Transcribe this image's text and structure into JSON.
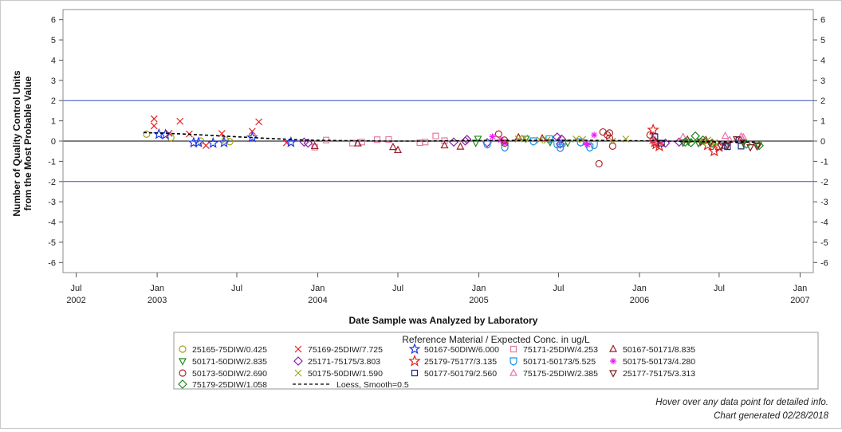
{
  "chart_data": {
    "type": "scatter",
    "xlabel": "Date Sample was Analyzed by Laboratory",
    "ylabel_lines": [
      "Number of Quality Control Units",
      "from the Most Probable Value"
    ],
    "ylim": [
      -6.5,
      6.5
    ],
    "yticks": [
      -6,
      -5,
      -4,
      -3,
      -2,
      -1,
      0,
      1,
      2,
      3,
      4,
      5,
      6
    ],
    "xlim": [
      "2002-06-01",
      "2007-01-31"
    ],
    "xticks": [
      {
        "date": "2002-07-01",
        "label": "Jul",
        "year": "2002"
      },
      {
        "date": "2003-01-01",
        "label": "Jan",
        "year": "2003"
      },
      {
        "date": "2003-07-01",
        "label": "Jul",
        "year": ""
      },
      {
        "date": "2004-01-01",
        "label": "Jan",
        "year": "2004"
      },
      {
        "date": "2004-07-01",
        "label": "Jul",
        "year": ""
      },
      {
        "date": "2005-01-01",
        "label": "Jan",
        "year": "2005"
      },
      {
        "date": "2005-07-01",
        "label": "Jul",
        "year": ""
      },
      {
        "date": "2006-01-01",
        "label": "Jan",
        "year": "2006"
      },
      {
        "date": "2006-07-01",
        "label": "Jul",
        "year": ""
      },
      {
        "date": "2007-01-01",
        "label": "Jan",
        "year": "2007"
      }
    ],
    "reference_lines": [
      {
        "y": 2,
        "color": "#3b4dbf"
      },
      {
        "y": -2,
        "color": "#3b4dbf"
      },
      {
        "y": 0,
        "color": "#000000"
      }
    ],
    "legend_title": "Reference Material / Expected Conc. in ug/L",
    "series": [
      {
        "name": "25165-75DIW/0.425",
        "marker": "circle",
        "color": "#a3a31a",
        "points": [
          [
            "2002-12-08",
            0.34
          ],
          [
            "2003-02-01",
            0.17
          ],
          [
            "2003-04-10",
            0.0
          ],
          [
            "2003-06-05",
            0.05
          ],
          [
            "2003-06-15",
            -0.03
          ]
        ]
      },
      {
        "name": "75169-25DIW/7.725",
        "marker": "x",
        "color": "#ee1c1c",
        "points": [
          [
            "2002-12-25",
            1.1
          ],
          [
            "2002-12-25",
            0.75
          ],
          [
            "2003-01-28",
            0.38
          ],
          [
            "2003-02-22",
            0.98
          ],
          [
            "2003-03-15",
            0.35
          ],
          [
            "2003-04-22",
            -0.22
          ],
          [
            "2003-05-28",
            0.37
          ],
          [
            "2003-08-05",
            0.48
          ],
          [
            "2003-08-20",
            0.95
          ],
          [
            "2003-10-22",
            -0.08
          ]
        ]
      },
      {
        "name": "50167-50DIW/6.000",
        "marker": "star5",
        "color": "#1c37e6",
        "points": [
          [
            "2003-01-05",
            0.34
          ],
          [
            "2003-01-20",
            0.32
          ],
          [
            "2003-03-25",
            -0.08
          ],
          [
            "2003-04-05",
            -0.07
          ],
          [
            "2003-05-08",
            -0.1
          ],
          [
            "2003-06-02",
            -0.07
          ],
          [
            "2003-08-05",
            0.18
          ],
          [
            "2003-11-01",
            -0.06
          ]
        ]
      },
      {
        "name": "75171-25DIW/4.253",
        "marker": "square",
        "color": "#e37aa6",
        "points": [
          [
            "2003-12-25",
            -0.3
          ],
          [
            "2004-01-20",
            0.05
          ],
          [
            "2004-03-20",
            -0.1
          ],
          [
            "2004-04-10",
            -0.05
          ],
          [
            "2004-05-15",
            0.07
          ],
          [
            "2004-06-10",
            0.08
          ],
          [
            "2004-08-20",
            -0.08
          ],
          [
            "2004-09-01",
            -0.05
          ],
          [
            "2004-09-25",
            0.25
          ],
          [
            "2004-10-15",
            0.02
          ]
        ]
      },
      {
        "name": "50167-50171/8.835",
        "marker": "triangle",
        "color": "#9c1c2a",
        "points": [
          [
            "2003-12-25",
            -0.25
          ],
          [
            "2004-04-01",
            -0.12
          ],
          [
            "2004-06-20",
            -0.3
          ],
          [
            "2004-07-01",
            -0.45
          ],
          [
            "2004-10-15",
            -0.22
          ],
          [
            "2004-11-20",
            -0.28
          ],
          [
            "2005-04-01",
            0.18
          ],
          [
            "2005-05-25",
            0.13
          ],
          [
            "2006-04-20",
            0.07
          ],
          [
            "2006-06-01",
            0.05
          ]
        ]
      },
      {
        "name": "50171-50DIW/2.835",
        "marker": "triangle-down",
        "color": "#1c8a1c",
        "points": [
          [
            "2004-12-25",
            -0.08
          ],
          [
            "2004-12-30",
            0.12
          ],
          [
            "2005-04-18",
            0.12
          ],
          [
            "2005-06-12",
            -0.05
          ],
          [
            "2005-07-22",
            -0.08
          ],
          [
            "2006-04-10",
            -0.08
          ],
          [
            "2006-04-22",
            -0.02
          ],
          [
            "2006-05-15",
            -0.1
          ]
        ]
      },
      {
        "name": "25171-75175/3.803",
        "marker": "diamond",
        "color": "#8b1ca8",
        "points": [
          [
            "2003-12-01",
            -0.05
          ],
          [
            "2003-12-10",
            -0.1
          ],
          [
            "2004-11-05",
            -0.05
          ],
          [
            "2004-12-01",
            0.0
          ],
          [
            "2004-12-05",
            0.08
          ],
          [
            "2005-01-20",
            -0.08
          ],
          [
            "2005-06-28",
            0.2
          ],
          [
            "2005-07-05",
            -0.15
          ],
          [
            "2005-07-08",
            0.1
          ],
          [
            "2006-03-01",
            -0.1
          ],
          [
            "2006-04-01",
            -0.05
          ]
        ]
      },
      {
        "name": "25179-75177/3.135",
        "marker": "star6",
        "color": "#e02020",
        "points": [
          [
            "2006-02-01",
            0.55
          ],
          [
            "2006-02-05",
            -0.05
          ],
          [
            "2006-02-08",
            -0.15
          ],
          [
            "2006-02-15",
            -0.25
          ],
          [
            "2006-06-05",
            -0.2
          ],
          [
            "2006-06-20",
            -0.5
          ],
          [
            "2006-07-01",
            -0.28
          ]
        ]
      },
      {
        "name": "50171-50173/5.525",
        "marker": "shield",
        "color": "#1c8fe6",
        "points": [
          [
            "2005-01-20",
            -0.15
          ],
          [
            "2005-03-01",
            -0.3
          ],
          [
            "2005-05-05",
            0.0
          ],
          [
            "2005-06-10",
            0.1
          ],
          [
            "2005-06-28",
            -0.15
          ],
          [
            "2005-07-05",
            -0.32
          ],
          [
            "2005-07-10",
            -0.1
          ],
          [
            "2005-08-20",
            -0.05
          ],
          [
            "2005-09-10",
            -0.3
          ],
          [
            "2005-09-20",
            -0.18
          ]
        ]
      },
      {
        "name": "50175-50173/4.280",
        "marker": "asterisk",
        "color": "#ee1cee",
        "points": [
          [
            "2005-02-01",
            0.22
          ],
          [
            "2005-02-20",
            0.05
          ],
          [
            "2005-03-01",
            -0.1
          ],
          [
            "2005-09-01",
            -0.1
          ],
          [
            "2005-09-05",
            -0.18
          ],
          [
            "2005-09-20",
            0.3
          ]
        ]
      },
      {
        "name": "50173-50DIW/2.690",
        "marker": "circle",
        "color": "#b0282a",
        "points": [
          [
            "2005-02-15",
            0.35
          ],
          [
            "2005-02-28",
            0.05
          ],
          [
            "2005-03-01",
            -0.1
          ],
          [
            "2005-10-01",
            -1.12
          ],
          [
            "2005-10-10",
            0.45
          ],
          [
            "2005-10-20",
            0.3
          ],
          [
            "2005-10-25",
            0.4
          ],
          [
            "2005-10-25",
            0.15
          ],
          [
            "2005-11-01",
            -0.25
          ],
          [
            "2006-01-25",
            0.3
          ],
          [
            "2006-02-01",
            0.05
          ]
        ]
      },
      {
        "name": "50175-50DIW/1.590",
        "marker": "x",
        "color": "#a3a31a",
        "points": [
          [
            "2005-04-01",
            0.1
          ],
          [
            "2005-04-15",
            0.15
          ],
          [
            "2005-05-20",
            0.05
          ],
          [
            "2005-06-05",
            0.05
          ],
          [
            "2005-08-10",
            0.1
          ],
          [
            "2005-08-25",
            0.08
          ],
          [
            "2005-11-01",
            0.0
          ],
          [
            "2005-12-01",
            0.1
          ],
          [
            "2006-05-25",
            -0.1
          ],
          [
            "2006-06-05",
            0.05
          ],
          [
            "2006-06-20",
            -0.08
          ]
        ]
      },
      {
        "name": "50177-50179/2.560",
        "marker": "square",
        "color": "#1a237e",
        "points": [
          [
            "2006-02-05",
            0.22
          ],
          [
            "2006-02-20",
            -0.1
          ],
          [
            "2006-07-15",
            -0.22
          ],
          [
            "2006-07-20",
            -0.28
          ],
          [
            "2006-08-15",
            0.05
          ],
          [
            "2006-08-20",
            -0.25
          ]
        ]
      },
      {
        "name": "75175-25DIW/2.385",
        "marker": "triangle",
        "color": "#ef6fae",
        "points": [
          [
            "2006-02-01",
            0.0
          ],
          [
            "2006-04-10",
            0.2
          ],
          [
            "2006-07-15",
            0.25
          ],
          [
            "2006-07-25",
            0.05
          ],
          [
            "2006-08-20",
            0.22
          ],
          [
            "2006-08-25",
            0.18
          ]
        ]
      },
      {
        "name": "25177-75175/3.313",
        "marker": "triangle-down",
        "color": "#7a1c1c",
        "points": [
          [
            "2006-05-20",
            -0.02
          ],
          [
            "2006-06-10",
            -0.1
          ],
          [
            "2006-07-05",
            -0.25
          ],
          [
            "2006-07-20",
            -0.2
          ],
          [
            "2006-08-10",
            0.1
          ],
          [
            "2006-08-25",
            -0.08
          ],
          [
            "2006-09-10",
            -0.3
          ],
          [
            "2006-09-25",
            -0.25
          ],
          [
            "2006-09-28",
            -0.2
          ]
        ]
      },
      {
        "name": "75179-25DIW/1.058",
        "marker": "diamond",
        "color": "#1c8a1c",
        "points": [
          [
            "2006-04-15",
            -0.05
          ],
          [
            "2006-04-28",
            -0.08
          ],
          [
            "2006-05-08",
            0.25
          ],
          [
            "2006-05-25",
            0.05
          ],
          [
            "2006-06-15",
            -0.1
          ],
          [
            "2006-09-01",
            -0.15
          ],
          [
            "2006-09-30",
            -0.22
          ]
        ]
      }
    ],
    "loess": {
      "name": "Loess, Smooth=0.5",
      "color": "#000000",
      "points": [
        [
          "2002-12-01",
          0.42
        ],
        [
          "2003-03-01",
          0.35
        ],
        [
          "2003-06-01",
          0.25
        ],
        [
          "2003-09-01",
          0.14
        ],
        [
          "2003-12-01",
          0.05
        ],
        [
          "2004-03-01",
          0.02
        ],
        [
          "2004-06-01",
          0.0
        ],
        [
          "2004-09-01",
          0.0
        ],
        [
          "2004-12-01",
          0.02
        ],
        [
          "2005-03-01",
          0.03
        ],
        [
          "2005-06-01",
          0.04
        ],
        [
          "2005-09-01",
          0.04
        ],
        [
          "2005-12-01",
          0.02
        ],
        [
          "2006-03-01",
          0.0
        ],
        [
          "2006-06-01",
          -0.03
        ],
        [
          "2006-09-25",
          -0.06
        ]
      ]
    }
  },
  "footnotes": {
    "line1": "Hover over any data point for detailed info.",
    "line2": "Chart generated 02/28/2018"
  }
}
